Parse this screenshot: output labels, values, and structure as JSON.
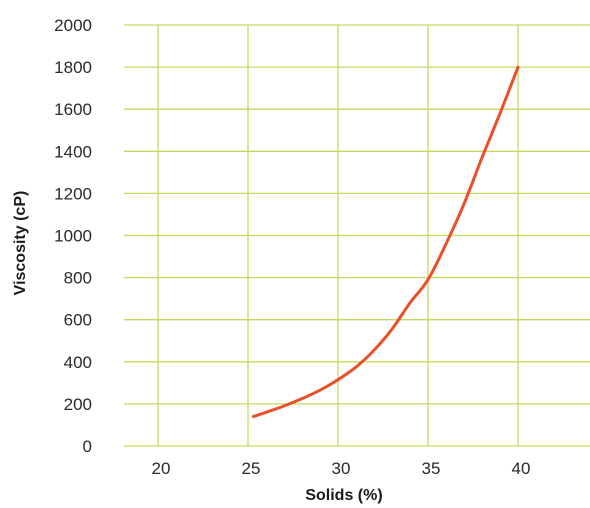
{
  "chart_data": {
    "type": "line",
    "title": "",
    "xlabel": "Solids (%)",
    "ylabel": "Viscosity (cP)",
    "xlim": [
      18,
      44
    ],
    "ylim": [
      0,
      2000
    ],
    "x_ticks": [
      "20",
      "25",
      "30",
      "35",
      "40"
    ],
    "y_ticks": [
      "0",
      "200",
      "400",
      "600",
      "800",
      "1000",
      "1200",
      "1400",
      "1600",
      "1800",
      "2000"
    ],
    "grid": true,
    "legend": "none",
    "colors": {
      "line": "#e8502a",
      "grid": "#c3da61",
      "text": "#2a2a2a"
    },
    "series": [
      {
        "x": [
          25.3,
          26,
          27,
          28,
          29,
          30,
          31,
          32,
          33,
          34,
          35,
          36,
          37,
          38,
          39,
          40
        ],
        "y": [
          140,
          160,
          190,
          225,
          265,
          315,
          375,
          455,
          555,
          680,
          790,
          960,
          1150,
          1370,
          1580,
          1800
        ]
      }
    ]
  }
}
